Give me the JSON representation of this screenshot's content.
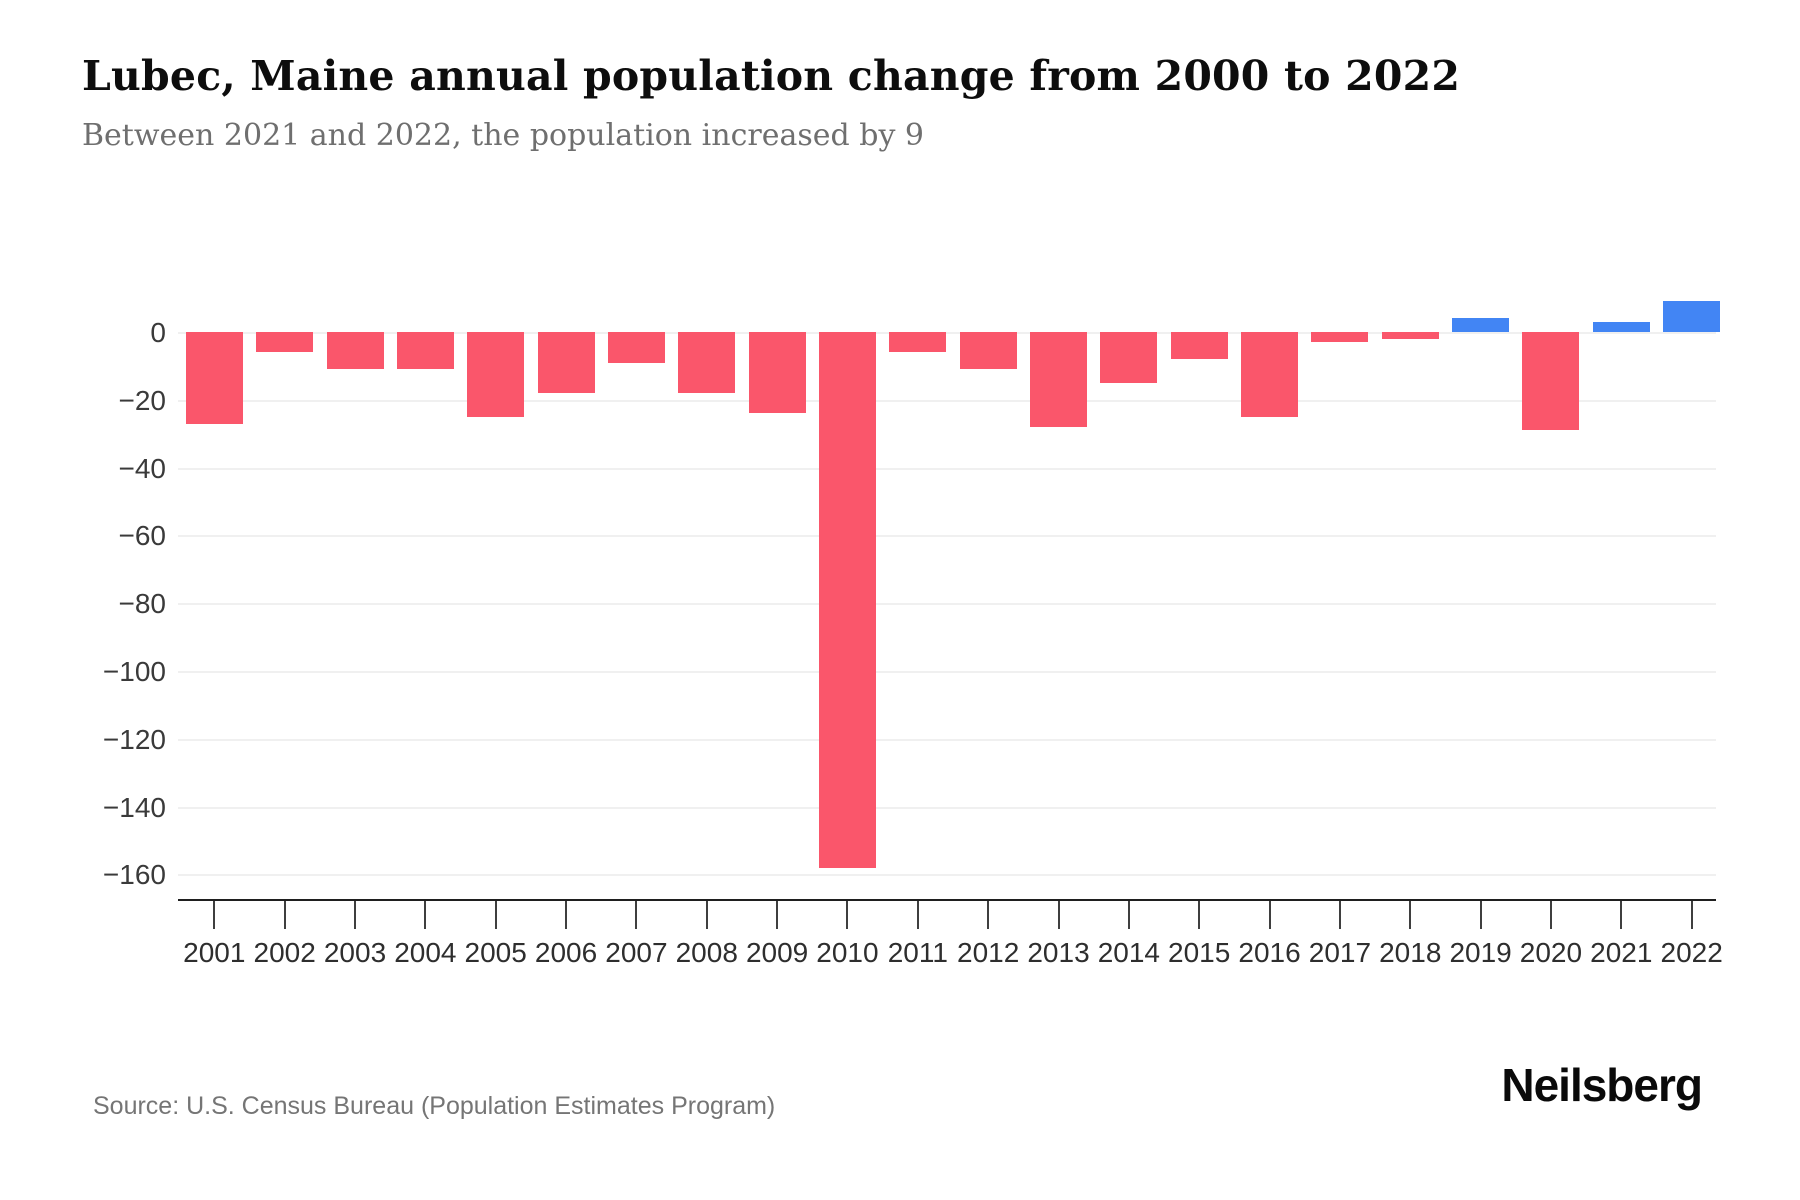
{
  "page": {
    "background": "#ffffff"
  },
  "header": {
    "title": "Lubec, Maine annual population change from 2000 to 2022",
    "subtitle": "Between 2021 and 2022, the population increased by 9"
  },
  "chart_data": {
    "type": "bar",
    "title": "Lubec, Maine annual population change from 2000 to 2022",
    "subtitle": "Between 2021 and 2022, the population increased by 9",
    "series_name": "Annual population change",
    "categories": [
      "2001",
      "2002",
      "2003",
      "2004",
      "2005",
      "2006",
      "2007",
      "2008",
      "2009",
      "2010",
      "2011",
      "2012",
      "2013",
      "2014",
      "2015",
      "2016",
      "2017",
      "2018",
      "2019",
      "2020",
      "2021",
      "2022"
    ],
    "values": [
      -27,
      -6,
      -11,
      -11,
      -25,
      -18,
      -9,
      -18,
      -24,
      -158,
      -6,
      -11,
      -28,
      -15,
      -8,
      -25,
      -3,
      -2,
      4,
      -29,
      3,
      9
    ],
    "xlabel": "",
    "ylabel": "",
    "ylim": [
      -165,
      12
    ],
    "yticks": [
      0,
      -20,
      -40,
      -60,
      -80,
      -100,
      -120,
      -140,
      -160
    ],
    "grid": true,
    "legend": false,
    "colors": {
      "negative_bar": "#fa566b",
      "positive_bar": "#4285f4",
      "axis_line": "#1f1f1f",
      "gridline": "#f0f0f0",
      "tick_label": "#3a3a3a"
    }
  },
  "footer": {
    "source": "Source: U.S. Census Bureau (Population Estimates Program)",
    "brand": "Neilsberg"
  }
}
